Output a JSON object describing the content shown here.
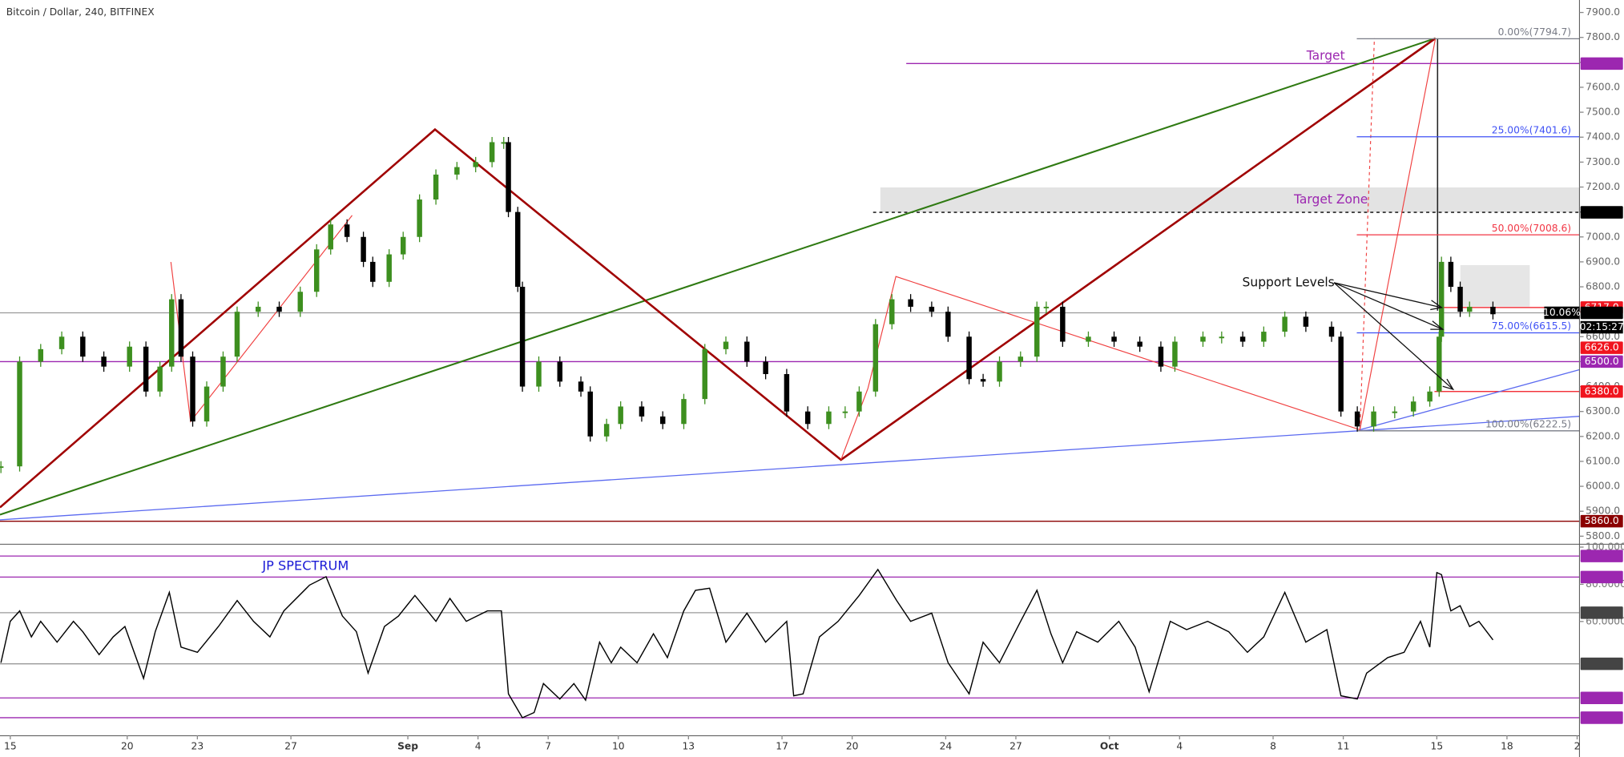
{
  "title": "Bitcoin / Dollar, 240, BITFINEX",
  "chart_data": [
    {
      "type": "candlestick",
      "xlim": [
        -0.44,
        67.1
      ],
      "xticks": [
        {
          "value": 0,
          "label": "15"
        },
        {
          "value": 5,
          "label": "20"
        },
        {
          "value": 8,
          "label": "23"
        },
        {
          "value": 12,
          "label": "27"
        },
        {
          "value": 17,
          "label": "Sep"
        },
        {
          "value": 20,
          "label": "4"
        },
        {
          "value": 23,
          "label": "7"
        },
        {
          "value": 26,
          "label": "10"
        },
        {
          "value": 29,
          "label": "13"
        },
        {
          "value": 33,
          "label": "17"
        },
        {
          "value": 36,
          "label": "20"
        },
        {
          "value": 40,
          "label": "24"
        },
        {
          "value": 43,
          "label": "27"
        },
        {
          "value": 47,
          "label": "Oct"
        },
        {
          "value": 50,
          "label": "4"
        },
        {
          "value": 54,
          "label": "8"
        },
        {
          "value": 57,
          "label": "11"
        },
        {
          "value": 61,
          "label": "15"
        },
        {
          "value": 64,
          "label": "18"
        },
        {
          "value": 67,
          "label": "2"
        }
      ],
      "ylim": [
        5770,
        7950
      ],
      "yticks": [
        {
          "value": 5800,
          "label": "5800.0"
        },
        {
          "value": 5900,
          "label": "5900.0"
        },
        {
          "value": 6000,
          "label": "6000.0"
        },
        {
          "value": 6100,
          "label": "6100.0"
        },
        {
          "value": 6200,
          "label": "6200.0"
        },
        {
          "value": 6300,
          "label": "6300.0"
        },
        {
          "value": 6400,
          "label": "6400.0"
        },
        {
          "value": 6500,
          "label": "6500.0"
        },
        {
          "value": 6600,
          "label": "6600.0"
        },
        {
          "value": 6700,
          "label": "6700.0"
        },
        {
          "value": 6800,
          "label": "6800.0"
        },
        {
          "value": 6900,
          "label": "6900.0"
        },
        {
          "value": 7000,
          "label": "7000.0"
        },
        {
          "value": 7100,
          "label": "7100.0"
        },
        {
          "value": 7200,
          "label": "7200.0"
        },
        {
          "value": 7300,
          "label": "7300.0"
        },
        {
          "value": 7400,
          "label": "7400.0"
        },
        {
          "value": 7500,
          "label": "7500.0"
        },
        {
          "value": 7600,
          "label": "7600.0"
        },
        {
          "value": 7700,
          "label": "7700.0"
        },
        {
          "value": 7800,
          "label": "7800.0"
        },
        {
          "value": 7900,
          "label": "7900.0"
        }
      ],
      "x": [
        -0.4,
        0.4,
        1.3,
        2.2,
        3.1,
        4.0,
        5.1,
        5.8,
        6.4,
        6.9,
        7.3,
        7.8,
        8.4,
        9.1,
        9.7,
        10.6,
        11.5,
        12.4,
        13.1,
        13.7,
        14.4,
        15.1,
        15.5,
        16.2,
        16.8,
        17.5,
        18.2,
        19.1,
        19.9,
        20.6,
        21.1,
        21.3,
        21.7,
        21.9,
        22.6,
        23.5,
        24.4,
        24.8,
        25.5,
        26.1,
        27.0,
        27.9,
        28.8,
        29.7,
        30.6,
        31.5,
        32.3,
        33.2,
        34.1,
        35.0,
        35.7,
        36.3,
        37.0,
        37.7,
        38.5,
        39.4,
        40.1,
        41.0,
        41.6,
        42.3,
        43.2,
        43.9,
        44.3,
        45.0,
        46.1,
        47.2,
        48.3,
        49.2,
        49.8,
        51.0,
        51.8,
        52.7,
        53.6,
        54.5,
        55.4,
        56.5,
        56.9,
        57.6,
        58.3,
        59.2,
        60.0,
        60.7,
        61.1,
        61.2,
        61.6,
        62.0,
        62.4,
        63.4
      ],
      "up_color": "#3d8f1f",
      "down_color": "#000000",
      "series": [
        {
          "values": [
            6080,
            6500,
            6550,
            6600,
            6520,
            6480,
            6560,
            6380,
            6480,
            6750,
            6520,
            6260,
            6400,
            6520,
            6700,
            6720,
            6700,
            6780,
            6950,
            7050,
            7000,
            6900,
            6820,
            6930,
            7000,
            7150,
            7250,
            7280,
            7300,
            7380,
            7380,
            7100,
            6800,
            6400,
            6500,
            6420,
            6380,
            6200,
            6250,
            6320,
            6280,
            6250,
            6350,
            6550,
            6580,
            6500,
            6450,
            6300,
            6250,
            6300,
            6300,
            6380,
            6650,
            6750,
            6720,
            6700,
            6600,
            6430,
            6420,
            6500,
            6520,
            6720,
            6720,
            6580,
            6600,
            6580,
            6560,
            6480,
            6580,
            6600,
            6600,
            6580,
            6620,
            6680,
            6640,
            6600,
            6300,
            6240,
            6300,
            6300,
            6340,
            6380,
            6600,
            6900,
            6800,
            6700,
            6720,
            6690
          ]
        }
      ],
      "price_levels": [
        {
          "value": 7695.2,
          "color": "#9c27b0"
        },
        {
          "value": 7098.6,
          "color": "#000000"
        },
        {
          "value": 6717,
          "label": "6717.0",
          "color": "#f0141e"
        },
        {
          "value": 6695.8,
          "color": "#000000"
        },
        {
          "value": 6626,
          "label": "6626.0",
          "color": "#f0141e"
        },
        {
          "value": 6500,
          "label": "6500.0",
          "color": "#9c27b0"
        },
        {
          "value": 6380,
          "label": "6380.0",
          "color": "#f0141e"
        },
        {
          "value": 5860,
          "label": "5860.0",
          "color": "#8b0000"
        }
      ],
      "fib_levels": [
        {
          "value": 7794.7,
          "label": "0.00%(7794.7)",
          "color": "#787b86"
        },
        {
          "value": 7401.6,
          "label": "25.00%(7401.6)",
          "color": "#3f51f5"
        },
        {
          "value": 7008.6,
          "label": "50.00%(7008.6)",
          "color": "#f23645"
        },
        {
          "value": 6615.5,
          "label": "75.00%(6615.5)",
          "color": "#3f51f5"
        },
        {
          "value": 6222.5,
          "label": "100.00%(6222.5)",
          "color": "#787b86"
        }
      ],
      "change_tag": "10.06%",
      "countdown": "02:15:27",
      "annotations": [
        "Target",
        "Target Zone",
        "Support Levels"
      ]
    },
    {
      "type": "line",
      "title": "JP SPECTRUM",
      "ylim": [
        -1.2,
        101.3
      ],
      "yticks": [
        {
          "value": 100,
          "label": "100.0000"
        },
        {
          "value": 80,
          "label": "80.0000"
        },
        {
          "value": 60,
          "label": "60.0000"
        }
      ],
      "x": [
        -0.4,
        0,
        0.4,
        0.9,
        1.3,
        2.0,
        2.7,
        3.1,
        3.8,
        4.4,
        4.9,
        5.7,
        6.2,
        6.8,
        7.3,
        8.0,
        8.9,
        9.7,
        10.4,
        11.1,
        11.7,
        12.8,
        13.5,
        14.2,
        14.8,
        15.3,
        16.0,
        16.6,
        17.3,
        18.2,
        18.8,
        19.5,
        20.4,
        21.0,
        21.3,
        21.9,
        22.4,
        22.8,
        23.5,
        24.1,
        24.6,
        25.2,
        25.7,
        26.1,
        26.8,
        27.5,
        28.1,
        28.8,
        29.3,
        29.9,
        30.6,
        31.5,
        32.3,
        33.2,
        33.5,
        33.9,
        34.6,
        35.4,
        36.3,
        37.1,
        37.9,
        38.5,
        39.4,
        40.1,
        41.0,
        41.6,
        42.3,
        43.2,
        43.9,
        44.5,
        45.0,
        45.6,
        46.5,
        47.4,
        48.1,
        48.7,
        49.6,
        50.3,
        51.2,
        52.1,
        52.9,
        53.6,
        54.5,
        55.4,
        56.3,
        56.9,
        57.6,
        58.0,
        58.9,
        59.6,
        60.3,
        60.7,
        61.0,
        61.2,
        61.6,
        62.0,
        62.4,
        62.8,
        63.4
      ],
      "series": [
        {
          "color": "#000000",
          "values": [
            37.8,
            60.1,
            65.7,
            51.7,
            60.1,
            48.9,
            60.1,
            54.5,
            42.2,
            51.7,
            57.3,
            29.4,
            54.5,
            75.7,
            46.2,
            43.4,
            57.3,
            71.3,
            60.1,
            51.7,
            65.7,
            79.6,
            84.1,
            62.9,
            54.5,
            32.2,
            57.3,
            62.9,
            74.0,
            60.1,
            72.4,
            60.1,
            65.7,
            65.7,
            21.1,
            8.2,
            11.0,
            26.6,
            18.3,
            26.6,
            17.7,
            48.9,
            37.8,
            46.2,
            37.8,
            53.4,
            40.6,
            65.7,
            76.8,
            77.9,
            48.9,
            64.5,
            48.9,
            60.1,
            20.0,
            21.1,
            51.7,
            60.1,
            74.0,
            88.0,
            71.3,
            60.1,
            64.5,
            37.8,
            21.1,
            48.9,
            37.8,
            60.1,
            76.8,
            53.4,
            37.8,
            54.5,
            48.9,
            60.1,
            46.2,
            22.2,
            60.1,
            55.6,
            60.1,
            54.5,
            43.4,
            51.7,
            75.7,
            48.9,
            55.6,
            20.0,
            18.3,
            32.2,
            40.6,
            43.4,
            60.1,
            46.2,
            86.3,
            85.2,
            65.7,
            68.5,
            57.3,
            60.1,
            50.1
          ]
        }
      ],
      "levels": [
        {
          "value": 95.2174,
          "color": "#9c27b0"
        },
        {
          "value": 83.8876,
          "color": "#9c27b0"
        },
        {
          "value": 64.7197,
          "color": "#444444"
        },
        {
          "value": 37.2237,
          "color": "#444444"
        },
        {
          "value": 18.8848,
          "color": "#9c27b0"
        },
        {
          "value": 8.2427,
          "color": "#9c27b0"
        }
      ]
    }
  ]
}
